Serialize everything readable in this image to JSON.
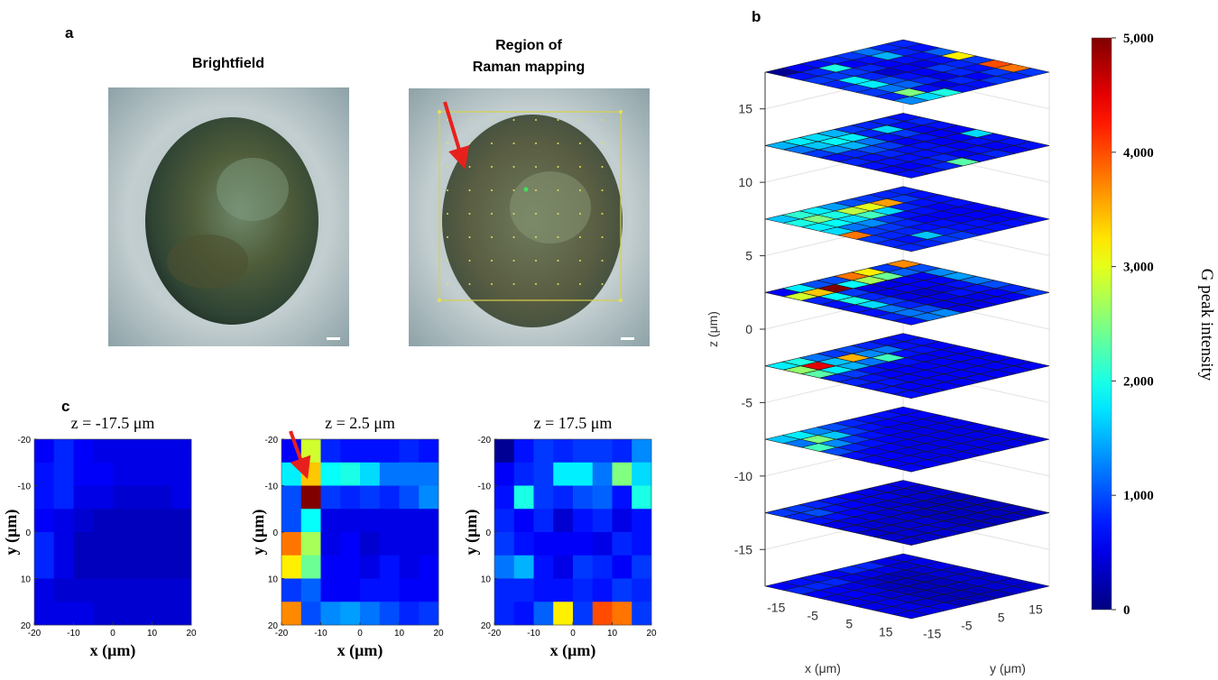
{
  "panels": {
    "a": "a",
    "b": "b",
    "c": "c",
    "brightfield_title": "Brightfield",
    "raman_title_lines": [
      "Region of",
      "Raman mapping"
    ]
  },
  "chart_data": [
    {
      "type": "heatmap3d",
      "zlabel": "z (μm)",
      "xlabel": "x (μm)",
      "ylabel": "y (μm)",
      "zlim": [
        -17.5,
        17.5
      ],
      "zticks": [
        15,
        10,
        5,
        0,
        -5,
        -10,
        -15
      ],
      "xlim": [
        -20,
        20
      ],
      "xticks": [
        -15,
        -5,
        5,
        15
      ],
      "ylim": [
        -20,
        20
      ],
      "yticks": [
        -15,
        -5,
        5,
        15
      ],
      "colormap": "jet",
      "clim": [
        0,
        5000
      ],
      "colorbar_ticks": [
        {
          "value": 5000,
          "label": "5,000"
        },
        {
          "value": 4000,
          "label": "4,000"
        },
        {
          "value": 3000,
          "label": "3,000"
        },
        {
          "value": 2000,
          "label": "2,000"
        },
        {
          "value": 1000,
          "label": "1,000"
        },
        0
      ],
      "colorbar_label": "G peak intensity",
      "layers": [
        {
          "z": 17.5,
          "values": [
            [
              100,
              700,
              900,
              800,
              900,
              900,
              800,
              1300
            ],
            [
              600,
              800,
              900,
              1800,
              1800,
              1200,
              2500,
              1700
            ],
            [
              700,
              2000,
              900,
              800,
              1000,
              1100,
              700,
              2000
            ],
            [
              800,
              600,
              800,
              400,
              700,
              800,
              500,
              700
            ],
            [
              900,
              700,
              600,
              600,
              600,
              500,
              800,
              700
            ],
            [
              1200,
              1500,
              700,
              500,
              900,
              800,
              600,
              900
            ],
            [
              800,
              800,
              700,
              700,
              800,
              700,
              900,
              800
            ],
            [
              800,
              700,
              1100,
              3200,
              900,
              4000,
              3800,
              900
            ]
          ]
        },
        {
          "z": 12.5,
          "values": [
            [
              1500,
              1200,
              900,
              700,
              800,
              700,
              600,
              700
            ],
            [
              1800,
              1600,
              1300,
              800,
              700,
              700,
              600,
              700
            ],
            [
              1700,
              1900,
              1500,
              1000,
              800,
              700,
              700,
              800
            ],
            [
              1500,
              1800,
              1200,
              900,
              700,
              700,
              800,
              2300
            ],
            [
              900,
              800,
              700,
              600,
              700,
              700,
              600,
              700
            ],
            [
              800,
              1700,
              900,
              700,
              600,
              600,
              700,
              800
            ],
            [
              800,
              700,
              600,
              600,
              600,
              700,
              600,
              600
            ],
            [
              700,
              800,
              700,
              600,
              1700,
              700,
              700,
              700
            ]
          ]
        },
        {
          "z": 7.5,
          "values": [
            [
              1600,
              2000,
              1800,
              1700,
              3800,
              900,
              800,
              800
            ],
            [
              2100,
              2500,
              1900,
              1200,
              900,
              800,
              700,
              800
            ],
            [
              1800,
              2000,
              1700,
              1300,
              900,
              800,
              1600,
              900
            ],
            [
              1400,
              2800,
              2200,
              900,
              800,
              700,
              800,
              900
            ],
            [
              1000,
              3000,
              1700,
              700,
              600,
              700,
              700,
              700
            ],
            [
              900,
              3600,
              800,
              700,
              600,
              600,
              700,
              700
            ],
            [
              800,
              900,
              700,
              600,
              600,
              600,
              600,
              700
            ],
            [
              800,
              700,
              700,
              700,
              600,
              600,
              600,
              700
            ]
          ]
        },
        {
          "z": 2.5,
          "values": [
            [
              600,
              2900,
              800,
              700,
              700,
              700,
              800,
              700
            ],
            [
              1800,
              3400,
              1900,
              2000,
              1700,
              1200,
              1200,
              1200
            ],
            [
              1000,
              5000,
              900,
              800,
              900,
              800,
              1000,
              1300
            ],
            [
              1000,
              1900,
              500,
              500,
              500,
              500,
              500,
              500
            ],
            [
              3800,
              2700,
              500,
              600,
              400,
              500,
              500,
              500
            ],
            [
              3200,
              2400,
              600,
              600,
              500,
              700,
              500,
              600
            ],
            [
              900,
              1100,
              600,
              600,
              700,
              700,
              600,
              600
            ],
            [
              3700,
              1000,
              1300,
              1400,
              1200,
              1000,
              800,
              900
            ]
          ]
        },
        {
          "z": -2.5,
          "values": [
            [
              1800,
              2600,
              2300,
              800,
              800,
              700,
              700,
              700
            ],
            [
              2000,
              4500,
              1800,
              900,
              700,
              700,
              600,
              600
            ],
            [
              1200,
              1600,
              1500,
              700,
              600,
              600,
              600,
              600
            ],
            [
              900,
              3500,
              1200,
              600,
              600,
              600,
              600,
              600
            ],
            [
              1000,
              1300,
              2200,
              700,
              600,
              600,
              600,
              600
            ],
            [
              800,
              1200,
              700,
              600,
              600,
              600,
              600,
              600
            ],
            [
              700,
              700,
              700,
              600,
              600,
              600,
              600,
              600
            ],
            [
              700,
              700,
              600,
              600,
              600,
              600,
              600,
              600
            ]
          ]
        },
        {
          "z": -7.5,
          "values": [
            [
              1600,
              1200,
              2200,
              1000,
              700,
              600,
              600,
              600
            ],
            [
              1800,
              2500,
              1300,
              800,
              600,
              600,
              600,
              600
            ],
            [
              1300,
              1600,
              900,
              700,
              600,
              500,
              500,
              500
            ],
            [
              1000,
              900,
              700,
              600,
              500,
              500,
              500,
              500
            ],
            [
              800,
              700,
              600,
              500,
              500,
              500,
              500,
              500
            ],
            [
              700,
              600,
              500,
              500,
              500,
              500,
              500,
              500
            ],
            [
              700,
              600,
              500,
              500,
              500,
              500,
              500,
              500
            ],
            [
              600,
              600,
              500,
              500,
              500,
              500,
              500,
              500
            ]
          ]
        },
        {
          "z": -12.5,
          "values": [
            [
              900,
              800,
              700,
              500,
              500,
              400,
              400,
              400
            ],
            [
              900,
              1000,
              700,
              500,
              400,
              400,
              400,
              400
            ],
            [
              800,
              700,
              600,
              500,
              400,
              400,
              400,
              400
            ],
            [
              700,
              600,
              500,
              400,
              400,
              400,
              400,
              400
            ],
            [
              600,
              500,
              400,
              400,
              300,
              300,
              300,
              300
            ],
            [
              500,
              500,
              400,
              300,
              300,
              300,
              300,
              300
            ],
            [
              500,
              400,
              400,
              300,
              300,
              300,
              300,
              300
            ],
            [
              500,
              400,
              400,
              300,
              300,
              300,
              300,
              300
            ]
          ]
        },
        {
          "z": -17.5,
          "values": [
            [
              600,
              800,
              600,
              500,
              500,
              500,
              500,
              500
            ],
            [
              700,
              800,
              600,
              600,
              500,
              500,
              500,
              500
            ],
            [
              700,
              800,
              500,
              500,
              400,
              400,
              400,
              500
            ],
            [
              600,
              500,
              400,
              300,
              300,
              300,
              300,
              300
            ],
            [
              800,
              500,
              300,
              300,
              300,
              300,
              300,
              300
            ],
            [
              800,
              500,
              300,
              300,
              300,
              300,
              300,
              300
            ],
            [
              500,
              400,
              400,
              400,
              400,
              400,
              400,
              400
            ],
            [
              500,
              500,
              500,
              400,
              400,
              400,
              400,
              400
            ]
          ]
        }
      ]
    },
    {
      "type": "heatmap",
      "title": "z = -17.5 μm",
      "xlabel": "x (μm)",
      "ylabel": "y (μm)",
      "xlim": [
        -20,
        20
      ],
      "ylim": [
        -20,
        20
      ],
      "y_reversed": true,
      "xticks": [
        -20,
        -10,
        0,
        10,
        20
      ],
      "yticks": [
        -20,
        -10,
        0,
        10,
        20
      ],
      "colormap": "jet",
      "clim": [
        0,
        5000
      ],
      "values": [
        [
          600,
          800,
          600,
          500,
          500,
          500,
          500,
          500
        ],
        [
          700,
          800,
          600,
          600,
          500,
          500,
          500,
          500
        ],
        [
          700,
          800,
          500,
          500,
          400,
          400,
          400,
          500
        ],
        [
          600,
          500,
          400,
          300,
          300,
          300,
          300,
          300
        ],
        [
          800,
          500,
          300,
          300,
          300,
          300,
          300,
          300
        ],
        [
          800,
          500,
          300,
          300,
          300,
          300,
          300,
          300
        ],
        [
          500,
          400,
          400,
          400,
          400,
          400,
          400,
          400
        ],
        [
          500,
          500,
          500,
          400,
          400,
          400,
          400,
          400
        ]
      ]
    },
    {
      "type": "heatmap",
      "title": "z = 2.5 μm",
      "xlabel": "x (μm)",
      "ylabel": "y (μm)",
      "xlim": [
        -20,
        20
      ],
      "ylim": [
        -20,
        20
      ],
      "y_reversed": true,
      "xticks": [
        -20,
        -10,
        0,
        10,
        20
      ],
      "yticks": [
        -20,
        -10,
        0,
        10,
        20
      ],
      "colormap": "jet",
      "clim": [
        0,
        5000
      ],
      "values": [
        [
          600,
          2900,
          800,
          700,
          700,
          700,
          800,
          700
        ],
        [
          1800,
          3400,
          1900,
          2000,
          1700,
          1200,
          1200,
          1200
        ],
        [
          1000,
          5000,
          900,
          800,
          900,
          800,
          1000,
          1300
        ],
        [
          1000,
          1900,
          500,
          500,
          500,
          500,
          500,
          500
        ],
        [
          3800,
          2700,
          500,
          600,
          400,
          500,
          500,
          500
        ],
        [
          3200,
          2400,
          600,
          600,
          500,
          700,
          500,
          600
        ],
        [
          900,
          1100,
          600,
          600,
          700,
          700,
          600,
          600
        ],
        [
          3700,
          1000,
          1300,
          1400,
          1200,
          1000,
          800,
          900
        ]
      ]
    },
    {
      "type": "heatmap",
      "title": "z = 17.5 μm",
      "xlabel": "x (μm)",
      "ylabel": "y (μm)",
      "xlim": [
        -20,
        20
      ],
      "ylim": [
        -20,
        20
      ],
      "y_reversed": true,
      "xticks": [
        -20,
        -10,
        0,
        10,
        20
      ],
      "yticks": [
        -20,
        -10,
        0,
        10,
        20
      ],
      "colormap": "jet",
      "clim": [
        0,
        5000
      ],
      "values": [
        [
          100,
          700,
          900,
          800,
          900,
          900,
          800,
          1300
        ],
        [
          600,
          800,
          900,
          1800,
          1800,
          1200,
          2500,
          1700
        ],
        [
          700,
          2000,
          900,
          800,
          1000,
          1100,
          700,
          2000
        ],
        [
          800,
          600,
          800,
          400,
          700,
          800,
          500,
          700
        ],
        [
          900,
          700,
          600,
          600,
          600,
          500,
          800,
          700
        ],
        [
          1200,
          1500,
          700,
          500,
          900,
          800,
          600,
          900
        ],
        [
          800,
          800,
          700,
          700,
          800,
          700,
          900,
          800
        ],
        [
          800,
          700,
          1100,
          3200,
          900,
          4000,
          3800,
          900
        ]
      ]
    }
  ]
}
